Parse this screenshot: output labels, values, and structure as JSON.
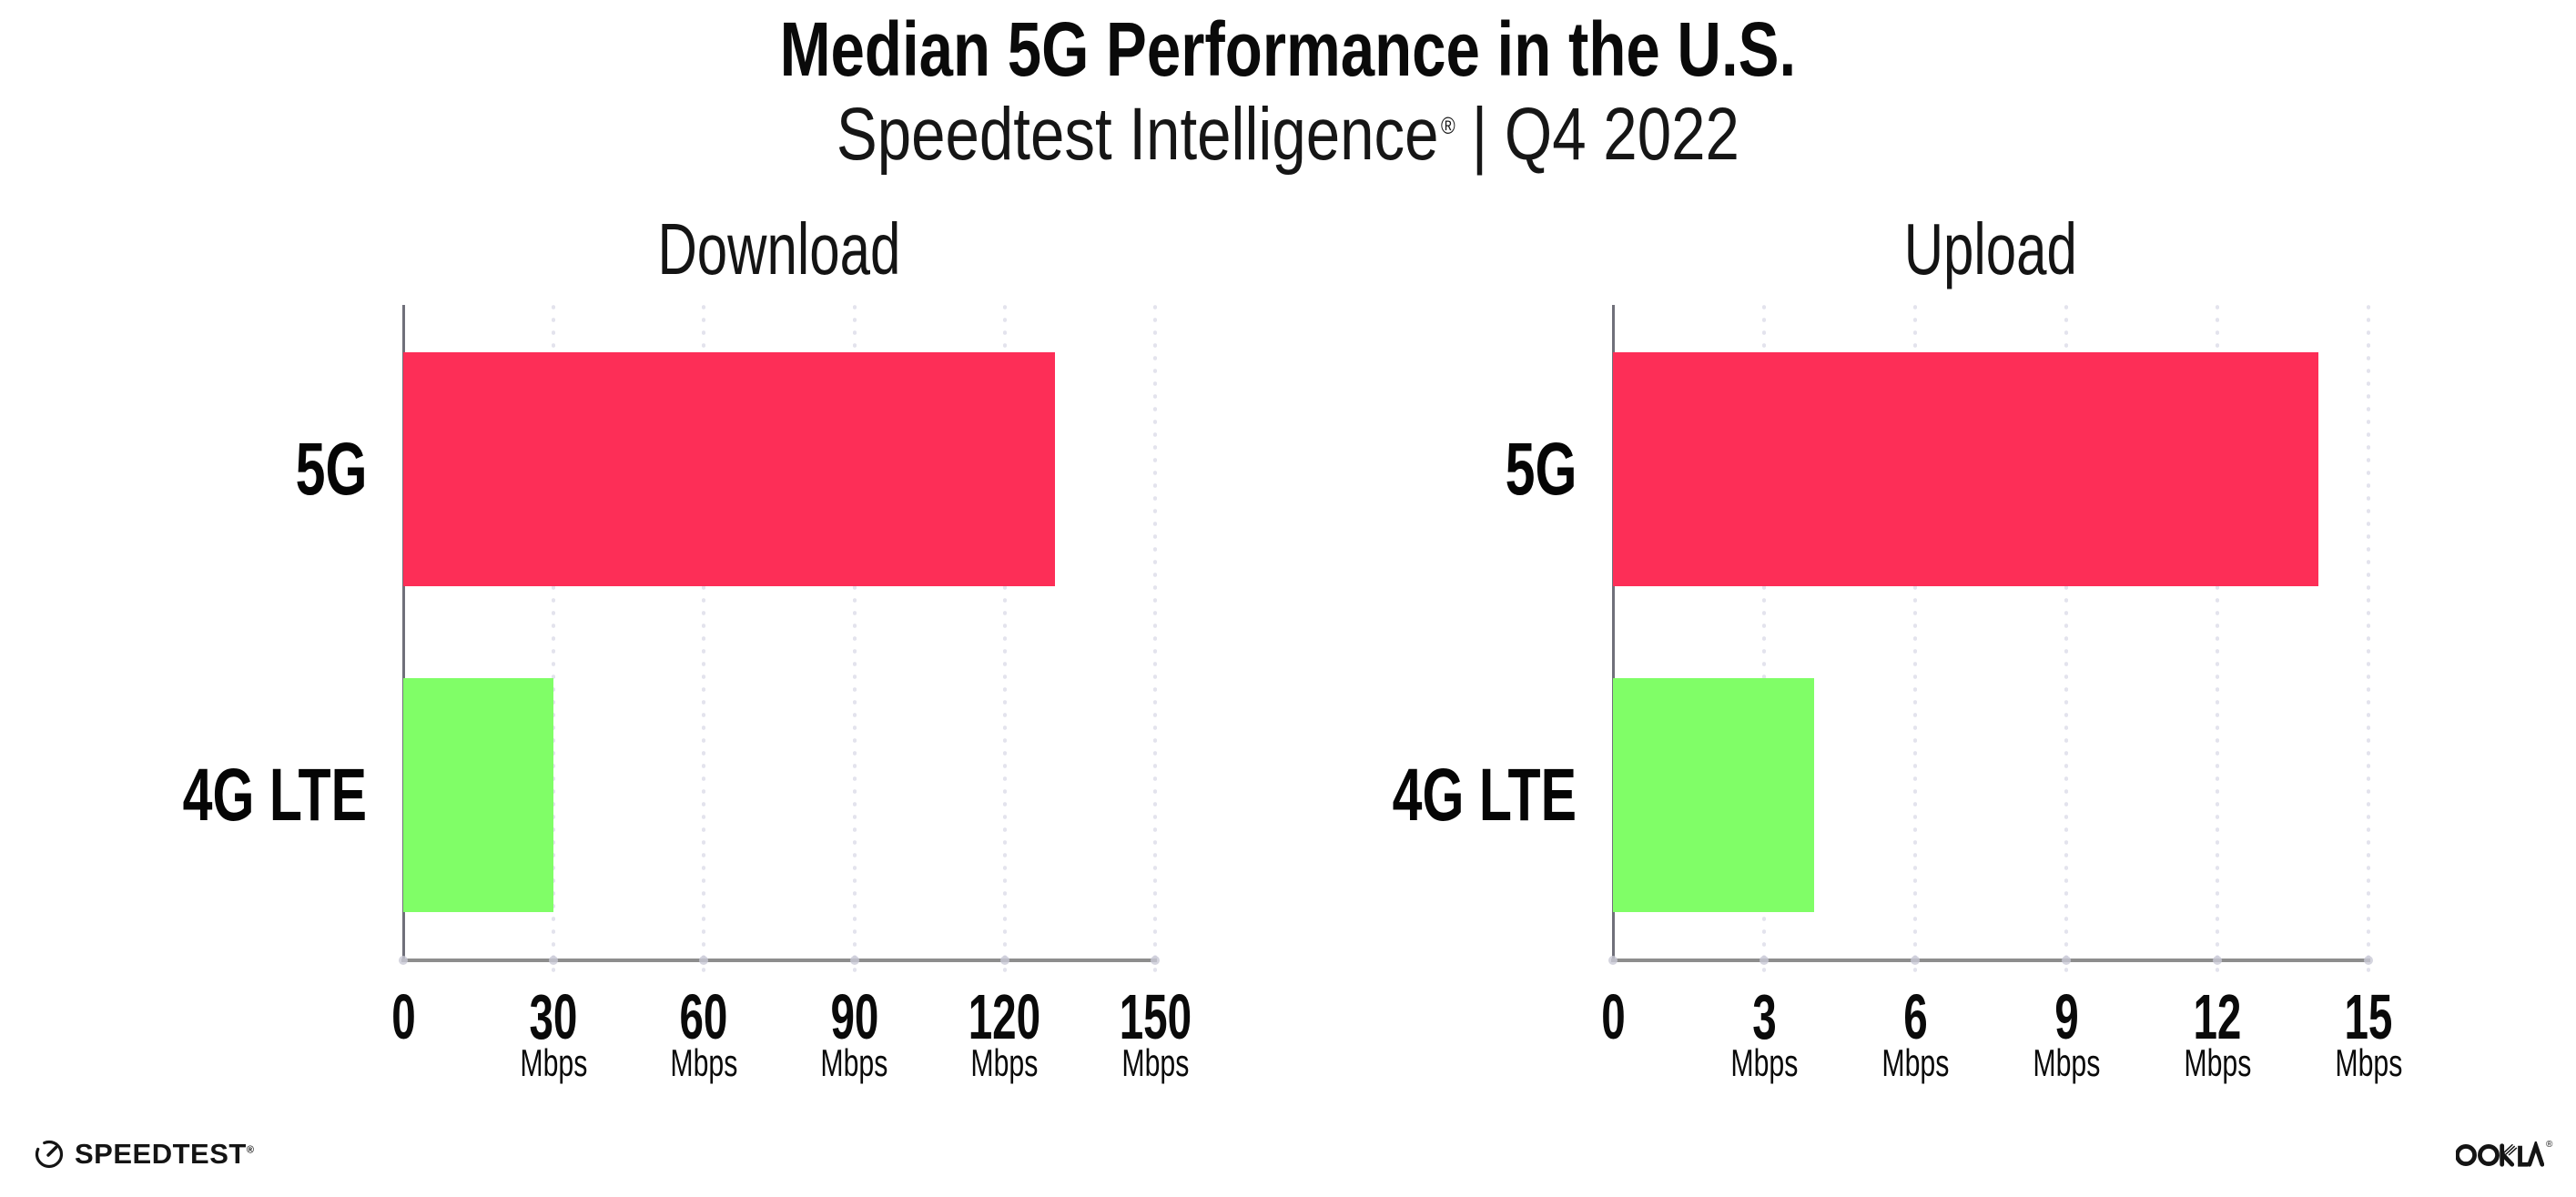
{
  "header": {
    "title": "Median 5G Performance in the U.S.",
    "subtitle": {
      "product": "Speedtest Intelligence",
      "mark": "®",
      "rest": "| Q4 2022"
    }
  },
  "colors": {
    "bar_5g_pink": "#fd2e57",
    "bar_4g_green": "#80fe67",
    "grid_dot": "#e3e3ed",
    "x_axis_line": "#8d8d8d",
    "y_axis_line": "#70707a",
    "tick_dot": "#c9c9d6",
    "text": "#111111"
  },
  "chart_data": [
    {
      "type": "bar",
      "orientation": "horizontal",
      "title": "Download",
      "categories": [
        "5G",
        "4G LTE"
      ],
      "values": [
        130,
        30
      ],
      "unit": "Mbps",
      "xlim": [
        0,
        150
      ],
      "xticks": [
        0,
        30,
        60,
        90,
        120,
        150
      ],
      "bar_colors": [
        "#fd2e57",
        "#80fe67"
      ],
      "grid": "dotted-vertical",
      "legend": "none",
      "note": "values estimated from gridlines"
    },
    {
      "type": "bar",
      "orientation": "horizontal",
      "title": "Upload",
      "categories": [
        "5G",
        "4G LTE"
      ],
      "values": [
        14,
        4
      ],
      "unit": "Mbps",
      "xlim": [
        0,
        15
      ],
      "xticks": [
        0,
        3,
        6,
        9,
        12,
        15
      ],
      "bar_colors": [
        "#fd2e57",
        "#80fe67"
      ],
      "grid": "dotted-vertical",
      "legend": "none",
      "note": "values estimated from gridlines"
    }
  ],
  "footer": {
    "speedtest_text": "SPEEDTEST",
    "speedtest_mark": "®",
    "ookla_text": "OOKLA",
    "ookla_mark": "®"
  }
}
